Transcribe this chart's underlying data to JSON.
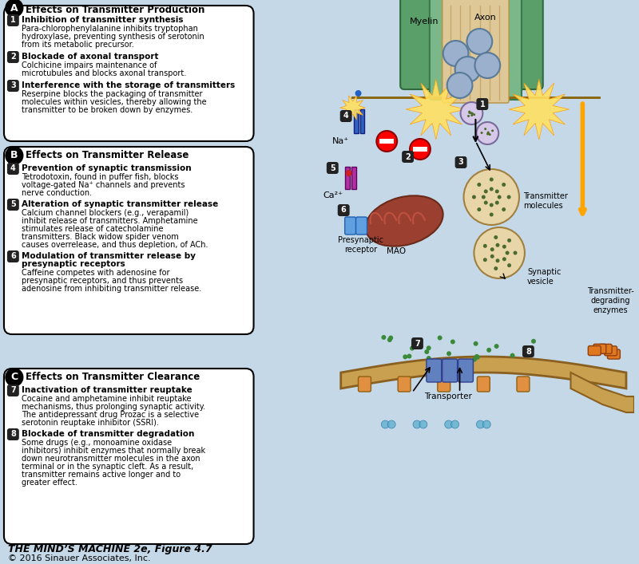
{
  "bg_color": "#c5d8e8",
  "panel_bg": "#f5f0e8",
  "white": "#ffffff",
  "black": "#000000",
  "title": "THE MIND’S MACHINE 2e, Figure 4.7",
  "subtitle": "© 2016 Sinauer Associates, Inc.",
  "box_A_title": "Effects on Transmitter Production",
  "box_A_items": [
    [
      "1",
      "Inhibition of transmitter synthesis",
      "Para-chlorophenylalanine inhibits tryptophan\nhydroxylase, preventing synthesis of serotonin\nfrom its metabolic precursor."
    ],
    [
      "2",
      "Blockade of axonal transport",
      "Colchicine impairs maintenance of\nmicrotubules and blocks axonal transport."
    ],
    [
      "3",
      "Interference with the storage of transmitters",
      "Reserpine blocks the packaging of transmitter\nmolecules within vesicles, thereby allowing the\ntransmitter to be broken down by enzymes."
    ]
  ],
  "box_B_title": "Effects on Transmitter Release",
  "box_B_items": [
    [
      "4",
      "Prevention of synaptic transmission",
      "Tetrodotoxin, found in puffer fish, blocks\nvoltage-gated Na⁺ channels and prevents\nnerve conduction."
    ],
    [
      "5",
      "Alteration of synaptic transmitter release",
      "Calcium channel blockers (e.g., verapamil)\ninhibit release of transmitters. Amphetamine\nstimulates release of catecholamine\ntransmitters. Black widow spider venom\ncauses overrelease, and thus depletion, of ACh."
    ],
    [
      "6",
      "Modulation of transmitter release by\npresynaptic receptors",
      "Caffeine competes with adenosine for\npresynaptic receptors, and thus prevents\nadenosine from inhibiting transmitter release."
    ]
  ],
  "box_C_title": "Effects on Transmitter Clearance",
  "box_C_items": [
    [
      "7",
      "Inactivation of transmitter reuptake",
      "Cocaine and amphetamine inhibit reuptake\nmechanisms, thus prolonging synaptic activity.\nThe antidepressant drug Prozac is a selective\nserotonin reuptake inhibitor (SSRI)."
    ],
    [
      "8",
      "Blockade of transmitter degradation",
      "Some drugs (e.g., monoamine oxidase\ninhibitors) inhibit enzymes that normally break\ndown neurotransmitter molecules in the axon\nterminal or in the synaptic cleft. As a result,\ntransmitter remains active longer and to\ngreater effect."
    ]
  ],
  "axon_color": "#c8a87a",
  "axon_outline": "#8b6914",
  "myelin_color": "#6aaa7a",
  "myelin_outline": "#2d6b3a",
  "vesicle_color": "#9db8d8",
  "vesicle_outline": "#4a6a8a",
  "mitochondria_color": "#8b3a2a",
  "synaptic_vesicle_color": "#d4b896",
  "terminal_bg": "#e8d5b0",
  "postsynaptic_color": "#c8a050"
}
